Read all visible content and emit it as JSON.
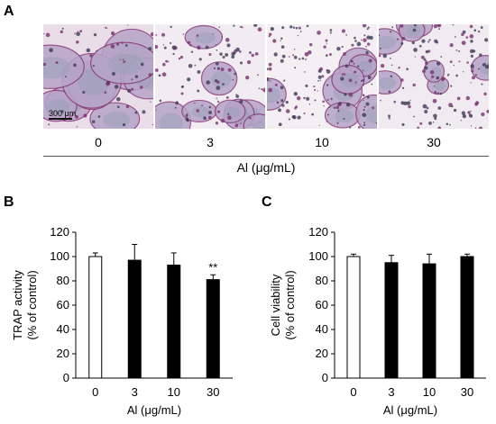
{
  "panel_a": {
    "letter": "A",
    "scale_bar_label": "300 μm",
    "concentrations": [
      "0",
      "3",
      "10",
      "30"
    ],
    "xlabel": "Al (μg/mL)"
  },
  "chart_data": [
    {
      "type": "bar",
      "panel": "B",
      "categories": [
        "0",
        "3",
        "10",
        "30"
      ],
      "values": [
        100,
        97,
        93,
        81
      ],
      "errors": [
        3,
        13,
        10,
        4
      ],
      "bar_fill": [
        "#ffffff",
        "#000000",
        "#000000",
        "#000000"
      ],
      "annotations": [
        {
          "category": "30",
          "text": "**"
        }
      ],
      "ylabel": "TRAP activity\n(% of control)",
      "xlabel": "Al (μg/mL)",
      "ylim": [
        0,
        120
      ],
      "yticks": [
        0,
        20,
        40,
        60,
        80,
        100,
        120
      ],
      "grid": false
    },
    {
      "type": "bar",
      "panel": "C",
      "categories": [
        "0",
        "3",
        "10",
        "30"
      ],
      "values": [
        100,
        95,
        94,
        100
      ],
      "errors": [
        2,
        6,
        8,
        2
      ],
      "bar_fill": [
        "#ffffff",
        "#000000",
        "#000000",
        "#000000"
      ],
      "annotations": [],
      "ylabel": "Cell viability\n(% of control)",
      "xlabel": "Al (μg/mL)",
      "ylim": [
        0,
        120
      ],
      "yticks": [
        0,
        20,
        40,
        60,
        80,
        100,
        120
      ],
      "grid": false
    }
  ]
}
